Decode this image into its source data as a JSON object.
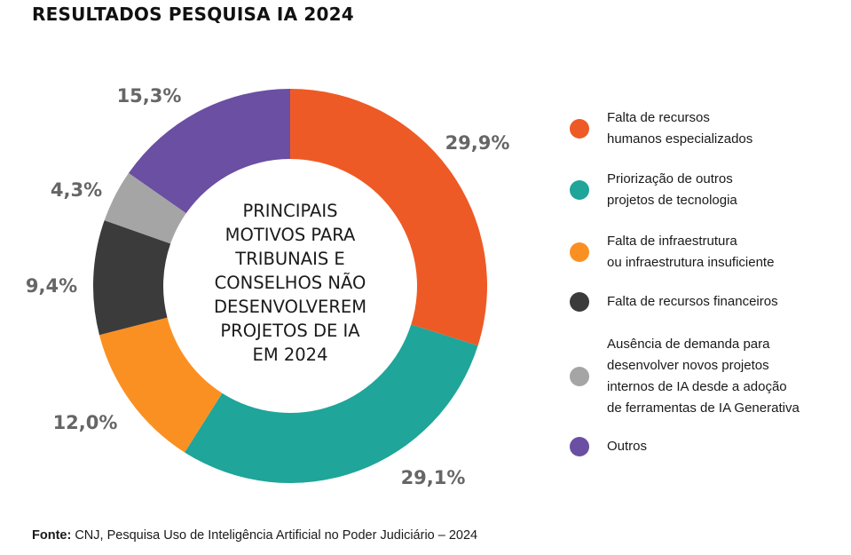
{
  "title": "RESULTADOS PESQUISA IA 2024",
  "center_label": "PRINCIPAIS\nMOTIVOS PARA\nTRIBUNAIS E\nCONSELHOS NÃO\nDESENVOLVEREM\nPROJETOS DE IA\nEM 2024",
  "source_prefix": "Fonte:",
  "source_text": "CNJ, Pesquisa Uso de Inteligência Artificial no Poder Judiciário – 2024",
  "chart_data": {
    "type": "pie",
    "donut": true,
    "slices": [
      {
        "label": "Falta de recursos\nhumanos especializados",
        "value": 29.9,
        "display": "29,9%",
        "color": "#EE5A26"
      },
      {
        "label": "Priorização de outros\nprojetos de tecnologia",
        "value": 29.1,
        "display": "29,1%",
        "color": "#1FA59A"
      },
      {
        "label": "Falta de infraestrutura\nou infraestrutura insuficiente",
        "value": 12.0,
        "display": "12,0%",
        "color": "#FB9022"
      },
      {
        "label": "Falta de recursos financeiros",
        "value": 9.4,
        "display": "9,4%",
        "color": "#3B3B3B"
      },
      {
        "label": "Ausência de demanda para\ndesenvolver novos projetos\ninternos de IA desde a adoção\nde ferramentas de IA Generativa",
        "value": 4.3,
        "display": "4,3%",
        "color": "#A5A5A5"
      },
      {
        "label": "Outros",
        "value": 15.3,
        "display": "15,3%",
        "color": "#6A4FA3"
      }
    ]
  }
}
